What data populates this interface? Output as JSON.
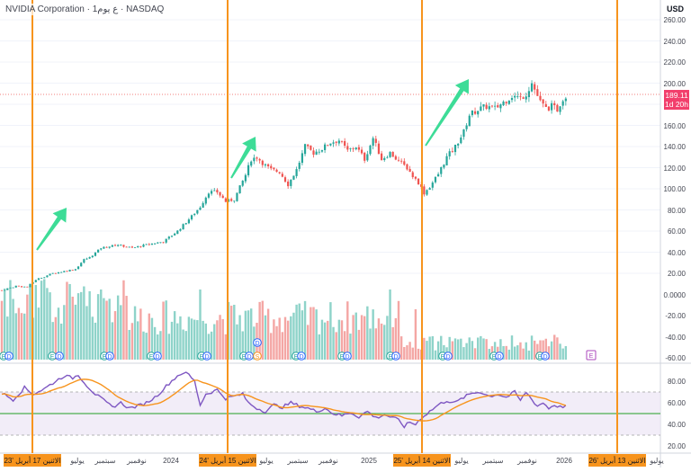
{
  "header": {
    "title": "NVIDIA Corporation",
    "interval": "1ع يوم",
    "exchange": "NASDAQ"
  },
  "axis": {
    "unit": "USD",
    "price_ticks": [
      "260.00",
      "240.00",
      "220.00",
      "200.00",
      "180.00",
      "160.00",
      "140.00",
      "120.00",
      "100.00",
      "80.00",
      "60.00",
      "40.00",
      "20.00",
      "0.0000",
      "-20.00",
      "-40.00",
      "-60.00"
    ],
    "rsi_ticks": [
      "80.00",
      "60.00",
      "40.00",
      "20.00"
    ],
    "time_ticks": [
      "يوليو",
      "سبتمبر",
      "نوفمبر",
      "2024",
      "يوليو",
      "سبتمبر",
      "نوفمبر",
      "2025",
      "يوليو",
      "سبتمبر",
      "نوفمبر",
      "2026",
      "يوليو"
    ]
  },
  "current_price": {
    "value": "189.11",
    "countdown": "1d 20h",
    "color": "#f23f6c"
  },
  "markers": {
    "earnings_letter": "E",
    "dividend_letter": "D",
    "split_letter": "S"
  },
  "vertical_lines": [
    {
      "label": "الاثنين 17 أبريل '23",
      "date": "2023-04-17"
    },
    {
      "label": "الاثنين 15 أبريل '24",
      "date": "2024-04-15"
    },
    {
      "label": "الاثنين 14 أبريل '25",
      "date": "2025-04-14"
    },
    {
      "label": "الاثنين 13 أبريل '26",
      "date": "2026-04-13"
    }
  ],
  "colors": {
    "up": "#26a69a",
    "down": "#ef5350",
    "vol_up": "#8ed3c9",
    "vol_down": "#f4a6a4",
    "vline": "#f7941d",
    "arrow": "#3ddc97",
    "rsi": "#7e57c2",
    "rsi_ma": "#f7941d",
    "rsi_mid": "#4caf50"
  },
  "chart_data": {
    "type": "candlestick",
    "price_keyframes": [
      [
        0,
        4
      ],
      [
        5,
        8
      ],
      [
        9,
        7
      ],
      [
        12,
        14
      ],
      [
        14,
        16
      ],
      [
        18,
        20
      ],
      [
        22,
        22
      ],
      [
        26,
        24
      ],
      [
        29,
        33
      ],
      [
        31,
        35
      ],
      [
        35,
        44
      ],
      [
        41,
        47
      ],
      [
        46,
        44
      ],
      [
        51,
        47
      ],
      [
        57,
        50
      ],
      [
        62,
        60
      ],
      [
        67,
        74
      ],
      [
        70,
        83
      ],
      [
        73,
        97
      ],
      [
        76,
        97
      ],
      [
        79,
        88
      ],
      [
        82,
        90
      ],
      [
        86,
        113
      ],
      [
        88,
        128
      ],
      [
        90,
        130
      ],
      [
        93,
        122
      ],
      [
        95,
        118
      ],
      [
        98,
        116
      ],
      [
        101,
        104
      ],
      [
        104,
        118
      ],
      [
        107,
        140
      ],
      [
        110,
        134
      ],
      [
        113,
        138
      ],
      [
        116,
        144
      ],
      [
        119,
        146
      ],
      [
        122,
        136
      ],
      [
        125,
        140
      ],
      [
        128,
        128
      ],
      [
        131,
        148
      ],
      [
        134,
        128
      ],
      [
        137,
        134
      ],
      [
        140,
        126
      ],
      [
        143,
        120
      ],
      [
        145,
        112
      ],
      [
        147,
        106
      ],
      [
        149,
        96
      ],
      [
        151,
        102
      ],
      [
        154,
        114
      ],
      [
        157,
        130
      ],
      [
        160,
        140
      ],
      [
        163,
        154
      ],
      [
        165,
        170
      ],
      [
        168,
        175
      ],
      [
        171,
        178
      ],
      [
        174,
        176
      ],
      [
        177,
        182
      ],
      [
        180,
        188
      ],
      [
        183,
        186
      ],
      [
        185,
        190
      ],
      [
        187,
        200
      ],
      [
        188,
        194
      ],
      [
        190,
        182
      ],
      [
        192,
        176
      ],
      [
        194,
        178
      ],
      [
        196,
        175
      ],
      [
        198,
        186
      ],
      [
        200,
        188
      ]
    ],
    "rsi_keyframes": [
      [
        0,
        69
      ],
      [
        4,
        63
      ],
      [
        8,
        74
      ],
      [
        11,
        68
      ],
      [
        15,
        73
      ],
      [
        19,
        80
      ],
      [
        22,
        85
      ],
      [
        25,
        83
      ],
      [
        27,
        86
      ],
      [
        30,
        76
      ],
      [
        33,
        68
      ],
      [
        36,
        62
      ],
      [
        39,
        56
      ],
      [
        42,
        60
      ],
      [
        45,
        55
      ],
      [
        48,
        57
      ],
      [
        51,
        60
      ],
      [
        54,
        65
      ],
      [
        56,
        70
      ],
      [
        59,
        78
      ],
      [
        62,
        85
      ],
      [
        64,
        88
      ],
      [
        66,
        86
      ],
      [
        68,
        80
      ],
      [
        70,
        58
      ],
      [
        72,
        68
      ],
      [
        74,
        70
      ],
      [
        76,
        72
      ],
      [
        79,
        64
      ],
      [
        82,
        66
      ],
      [
        85,
        68
      ],
      [
        87,
        60
      ],
      [
        90,
        55
      ],
      [
        93,
        52
      ],
      [
        96,
        58
      ],
      [
        99,
        56
      ],
      [
        102,
        60
      ],
      [
        105,
        57
      ],
      [
        108,
        55
      ],
      [
        111,
        52
      ],
      [
        114,
        55
      ],
      [
        117,
        50
      ],
      [
        120,
        48
      ],
      [
        123,
        51
      ],
      [
        126,
        47
      ],
      [
        129,
        52
      ],
      [
        132,
        46
      ],
      [
        135,
        49
      ],
      [
        138,
        46
      ],
      [
        140,
        44
      ],
      [
        142,
        38
      ],
      [
        144,
        42
      ],
      [
        146,
        40
      ],
      [
        148,
        46
      ],
      [
        151,
        52
      ],
      [
        154,
        58
      ],
      [
        157,
        62
      ],
      [
        160,
        60
      ],
      [
        163,
        65
      ],
      [
        166,
        69
      ],
      [
        169,
        70
      ],
      [
        172,
        66
      ],
      [
        175,
        68
      ],
      [
        178,
        65
      ],
      [
        181,
        70
      ],
      [
        183,
        62
      ],
      [
        185,
        70
      ],
      [
        187,
        63
      ],
      [
        189,
        57
      ],
      [
        191,
        60
      ],
      [
        193,
        55
      ],
      [
        195,
        58
      ],
      [
        197,
        56
      ],
      [
        200,
        58
      ]
    ],
    "rsi_levels": {
      "upper": 70,
      "middle": 50,
      "lower": 30
    }
  }
}
